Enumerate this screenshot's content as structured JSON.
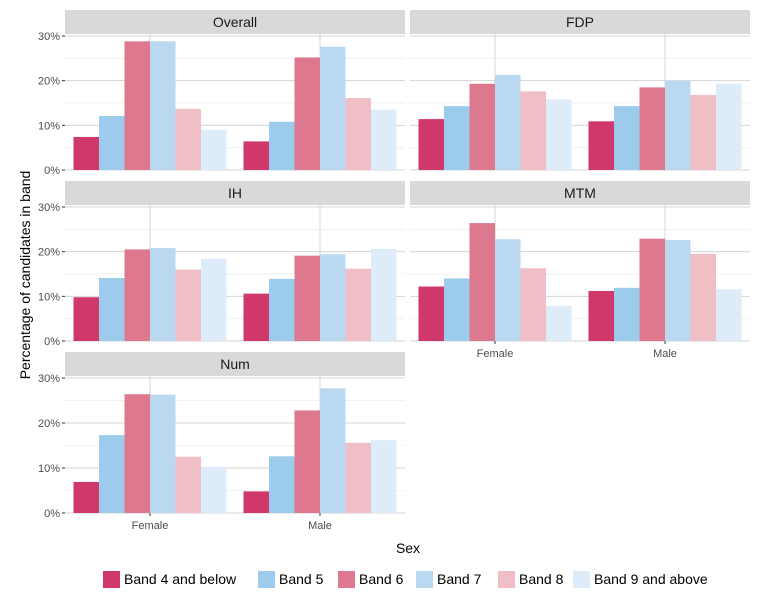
{
  "chart_data": {
    "type": "bar",
    "xlabel": "Sex",
    "ylabel": "Percentage of candidates in band",
    "ylim": [
      0,
      30
    ],
    "yticks": [
      "0%",
      "10%",
      "20%",
      "30%"
    ],
    "categories": [
      "Female",
      "Male"
    ],
    "grid": true,
    "legend_position": "bottom",
    "legend": [
      "Band 4 and below",
      "Band 5",
      "Band 6",
      "Band 7",
      "Band 8",
      "Band 9 and above"
    ],
    "colors": [
      "#d0376b",
      "#9ccbeb",
      "#de788f",
      "#bad8f0",
      "#f0bfc6",
      "#ddecf8"
    ],
    "panels": [
      {
        "title": "Overall",
        "series": [
          {
            "name": "Band 4 and below",
            "values": [
              7.4,
              6.4
            ]
          },
          {
            "name": "Band 5",
            "values": [
              12.1,
              10.8
            ]
          },
          {
            "name": "Band 6",
            "values": [
              28.8,
              25.2
            ]
          },
          {
            "name": "Band 7",
            "values": [
              28.8,
              27.6
            ]
          },
          {
            "name": "Band 8",
            "values": [
              13.7,
              16.1
            ]
          },
          {
            "name": "Band 9 and above",
            "values": [
              9.0,
              13.5
            ]
          }
        ]
      },
      {
        "title": "FDP",
        "series": [
          {
            "name": "Band 4 and below",
            "values": [
              11.4,
              10.9
            ]
          },
          {
            "name": "Band 5",
            "values": [
              14.3,
              14.3
            ]
          },
          {
            "name": "Band 6",
            "values": [
              19.3,
              18.5
            ]
          },
          {
            "name": "Band 7",
            "values": [
              21.3,
              20.0
            ]
          },
          {
            "name": "Band 8",
            "values": [
              17.6,
              16.8
            ]
          },
          {
            "name": "Band 9 and above",
            "values": [
              15.8,
              19.3
            ]
          }
        ]
      },
      {
        "title": "IH",
        "series": [
          {
            "name": "Band 4 and below",
            "values": [
              9.8,
              10.6
            ]
          },
          {
            "name": "Band 5",
            "values": [
              14.1,
              13.9
            ]
          },
          {
            "name": "Band 6",
            "values": [
              20.5,
              19.1
            ]
          },
          {
            "name": "Band 7",
            "values": [
              20.8,
              19.4
            ]
          },
          {
            "name": "Band 8",
            "values": [
              16.0,
              16.2
            ]
          },
          {
            "name": "Band 9 and above",
            "values": [
              18.4,
              20.6
            ]
          }
        ]
      },
      {
        "title": "MTM",
        "series": [
          {
            "name": "Band 4 and below",
            "values": [
              12.2,
              11.2
            ]
          },
          {
            "name": "Band 5",
            "values": [
              14.0,
              11.9
            ]
          },
          {
            "name": "Band 6",
            "values": [
              26.4,
              22.9
            ]
          },
          {
            "name": "Band 7",
            "values": [
              22.8,
              22.6
            ]
          },
          {
            "name": "Band 8",
            "values": [
              16.3,
              19.5
            ]
          },
          {
            "name": "Band 9 and above",
            "values": [
              7.9,
              11.6
            ]
          }
        ]
      },
      {
        "title": "Num",
        "series": [
          {
            "name": "Band 4 and below",
            "values": [
              6.9,
              4.8
            ]
          },
          {
            "name": "Band 5",
            "values": [
              17.3,
              12.6
            ]
          },
          {
            "name": "Band 6",
            "values": [
              26.4,
              22.8
            ]
          },
          {
            "name": "Band 7",
            "values": [
              26.3,
              27.7
            ]
          },
          {
            "name": "Band 8",
            "values": [
              12.5,
              15.6
            ]
          },
          {
            "name": "Band 9 and above",
            "values": [
              10.3,
              16.2
            ]
          }
        ]
      }
    ]
  }
}
